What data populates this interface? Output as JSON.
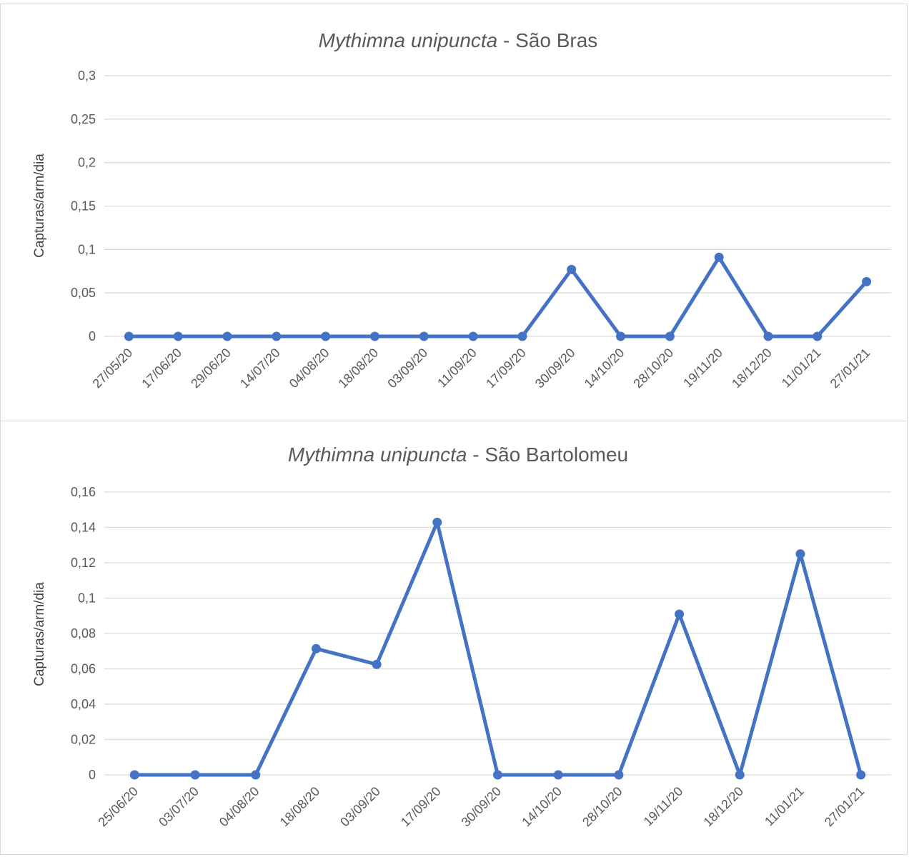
{
  "chart_data": [
    {
      "type": "line",
      "title_italic": "Mythimna unipuncta",
      "title_rest": " - São Bras",
      "ylabel": "Capturas/arm/dia",
      "xlabel": "",
      "ylim": [
        0,
        0.3
      ],
      "yticks": [
        {
          "v": 0,
          "label": "0"
        },
        {
          "v": 0.05,
          "label": "0,05"
        },
        {
          "v": 0.1,
          "label": "0,1"
        },
        {
          "v": 0.15,
          "label": "0,15"
        },
        {
          "v": 0.2,
          "label": "0,2"
        },
        {
          "v": 0.25,
          "label": "0,25"
        },
        {
          "v": 0.3,
          "label": "0,3"
        }
      ],
      "categories": [
        "27/05/20",
        "17/06/20",
        "29/06/20",
        "14/07/20",
        "04/08/20",
        "18/08/20",
        "03/09/20",
        "11/09/20",
        "17/09/20",
        "30/09/20",
        "14/10/20",
        "28/10/20",
        "19/11/20",
        "18/12/20",
        "11/01/21",
        "27/01/21"
      ],
      "values": [
        0,
        0,
        0,
        0,
        0,
        0,
        0,
        0,
        0,
        0.077,
        0,
        0,
        0.091,
        0,
        0,
        0.063
      ],
      "color": "#4472c4",
      "grid": true
    },
    {
      "type": "line",
      "title_italic": "Mythimna unipuncta",
      "title_rest": " - São Bartolomeu",
      "ylabel": "Capturas/arm/dia",
      "xlabel": "",
      "ylim": [
        0,
        0.16
      ],
      "yticks": [
        {
          "v": 0,
          "label": "0"
        },
        {
          "v": 0.02,
          "label": "0,02"
        },
        {
          "v": 0.04,
          "label": "0,04"
        },
        {
          "v": 0.06,
          "label": "0,06"
        },
        {
          "v": 0.08,
          "label": "0,08"
        },
        {
          "v": 0.1,
          "label": "0,1"
        },
        {
          "v": 0.12,
          "label": "0,12"
        },
        {
          "v": 0.14,
          "label": "0,14"
        },
        {
          "v": 0.16,
          "label": "0,16"
        }
      ],
      "categories": [
        "25/06/20",
        "03/07/20",
        "04/08/20",
        "18/08/20",
        "03/09/20",
        "17/09/20",
        "30/09/20",
        "14/10/20",
        "28/10/20",
        "19/11/20",
        "18/12/20",
        "11/01/21",
        "27/01/21"
      ],
      "values": [
        0,
        0,
        0,
        0.0714,
        0.0625,
        0.1429,
        0,
        0,
        0,
        0.0909,
        0,
        0.125,
        0
      ],
      "color": "#4472c4",
      "grid": true
    }
  ]
}
